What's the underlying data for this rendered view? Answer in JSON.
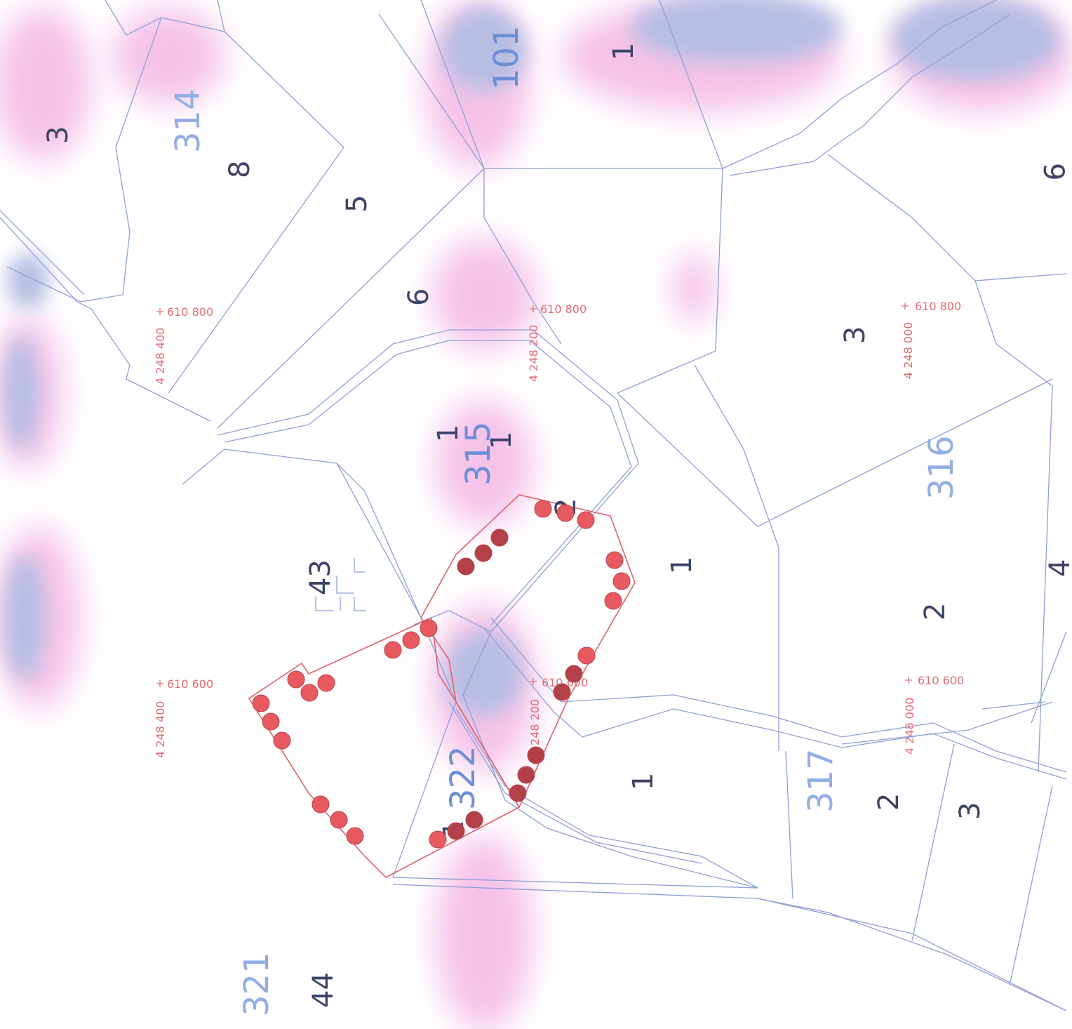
{
  "map": {
    "colors": {
      "parcel_line": "#8f9fd6",
      "area_outline": "#e0606a",
      "marker_fill": "#e95a60",
      "marker_dark": "#b4404a",
      "overlay_pink": "#f4b8e6",
      "overlay_blue": "#a9b3dd",
      "coord_label": "#e36b74",
      "sector_label": "#93aee4",
      "parcel_label": "#3c4466"
    },
    "sector_labels": [
      "101",
      "314",
      "315",
      "316",
      "317",
      "321",
      "322"
    ],
    "parcel_labels": [
      "1",
      "1",
      "1",
      "1",
      "1",
      "1",
      "2",
      "2",
      "2",
      "3",
      "3",
      "3",
      "3",
      "4",
      "5",
      "6",
      "8",
      "9",
      "43",
      "44"
    ],
    "coordinate_labels": {
      "x": [
        "610 800",
        "610 800",
        "610 800",
        "610 600",
        "610 600",
        "610 600"
      ],
      "y": [
        "4 248 400",
        "4 248 200",
        "4 248 000",
        "4 248 400",
        "248 200",
        "4 248 000"
      ]
    },
    "marker_icon": "circle-marker-icon",
    "grid_cross_icon": "plus-cross-icon"
  }
}
